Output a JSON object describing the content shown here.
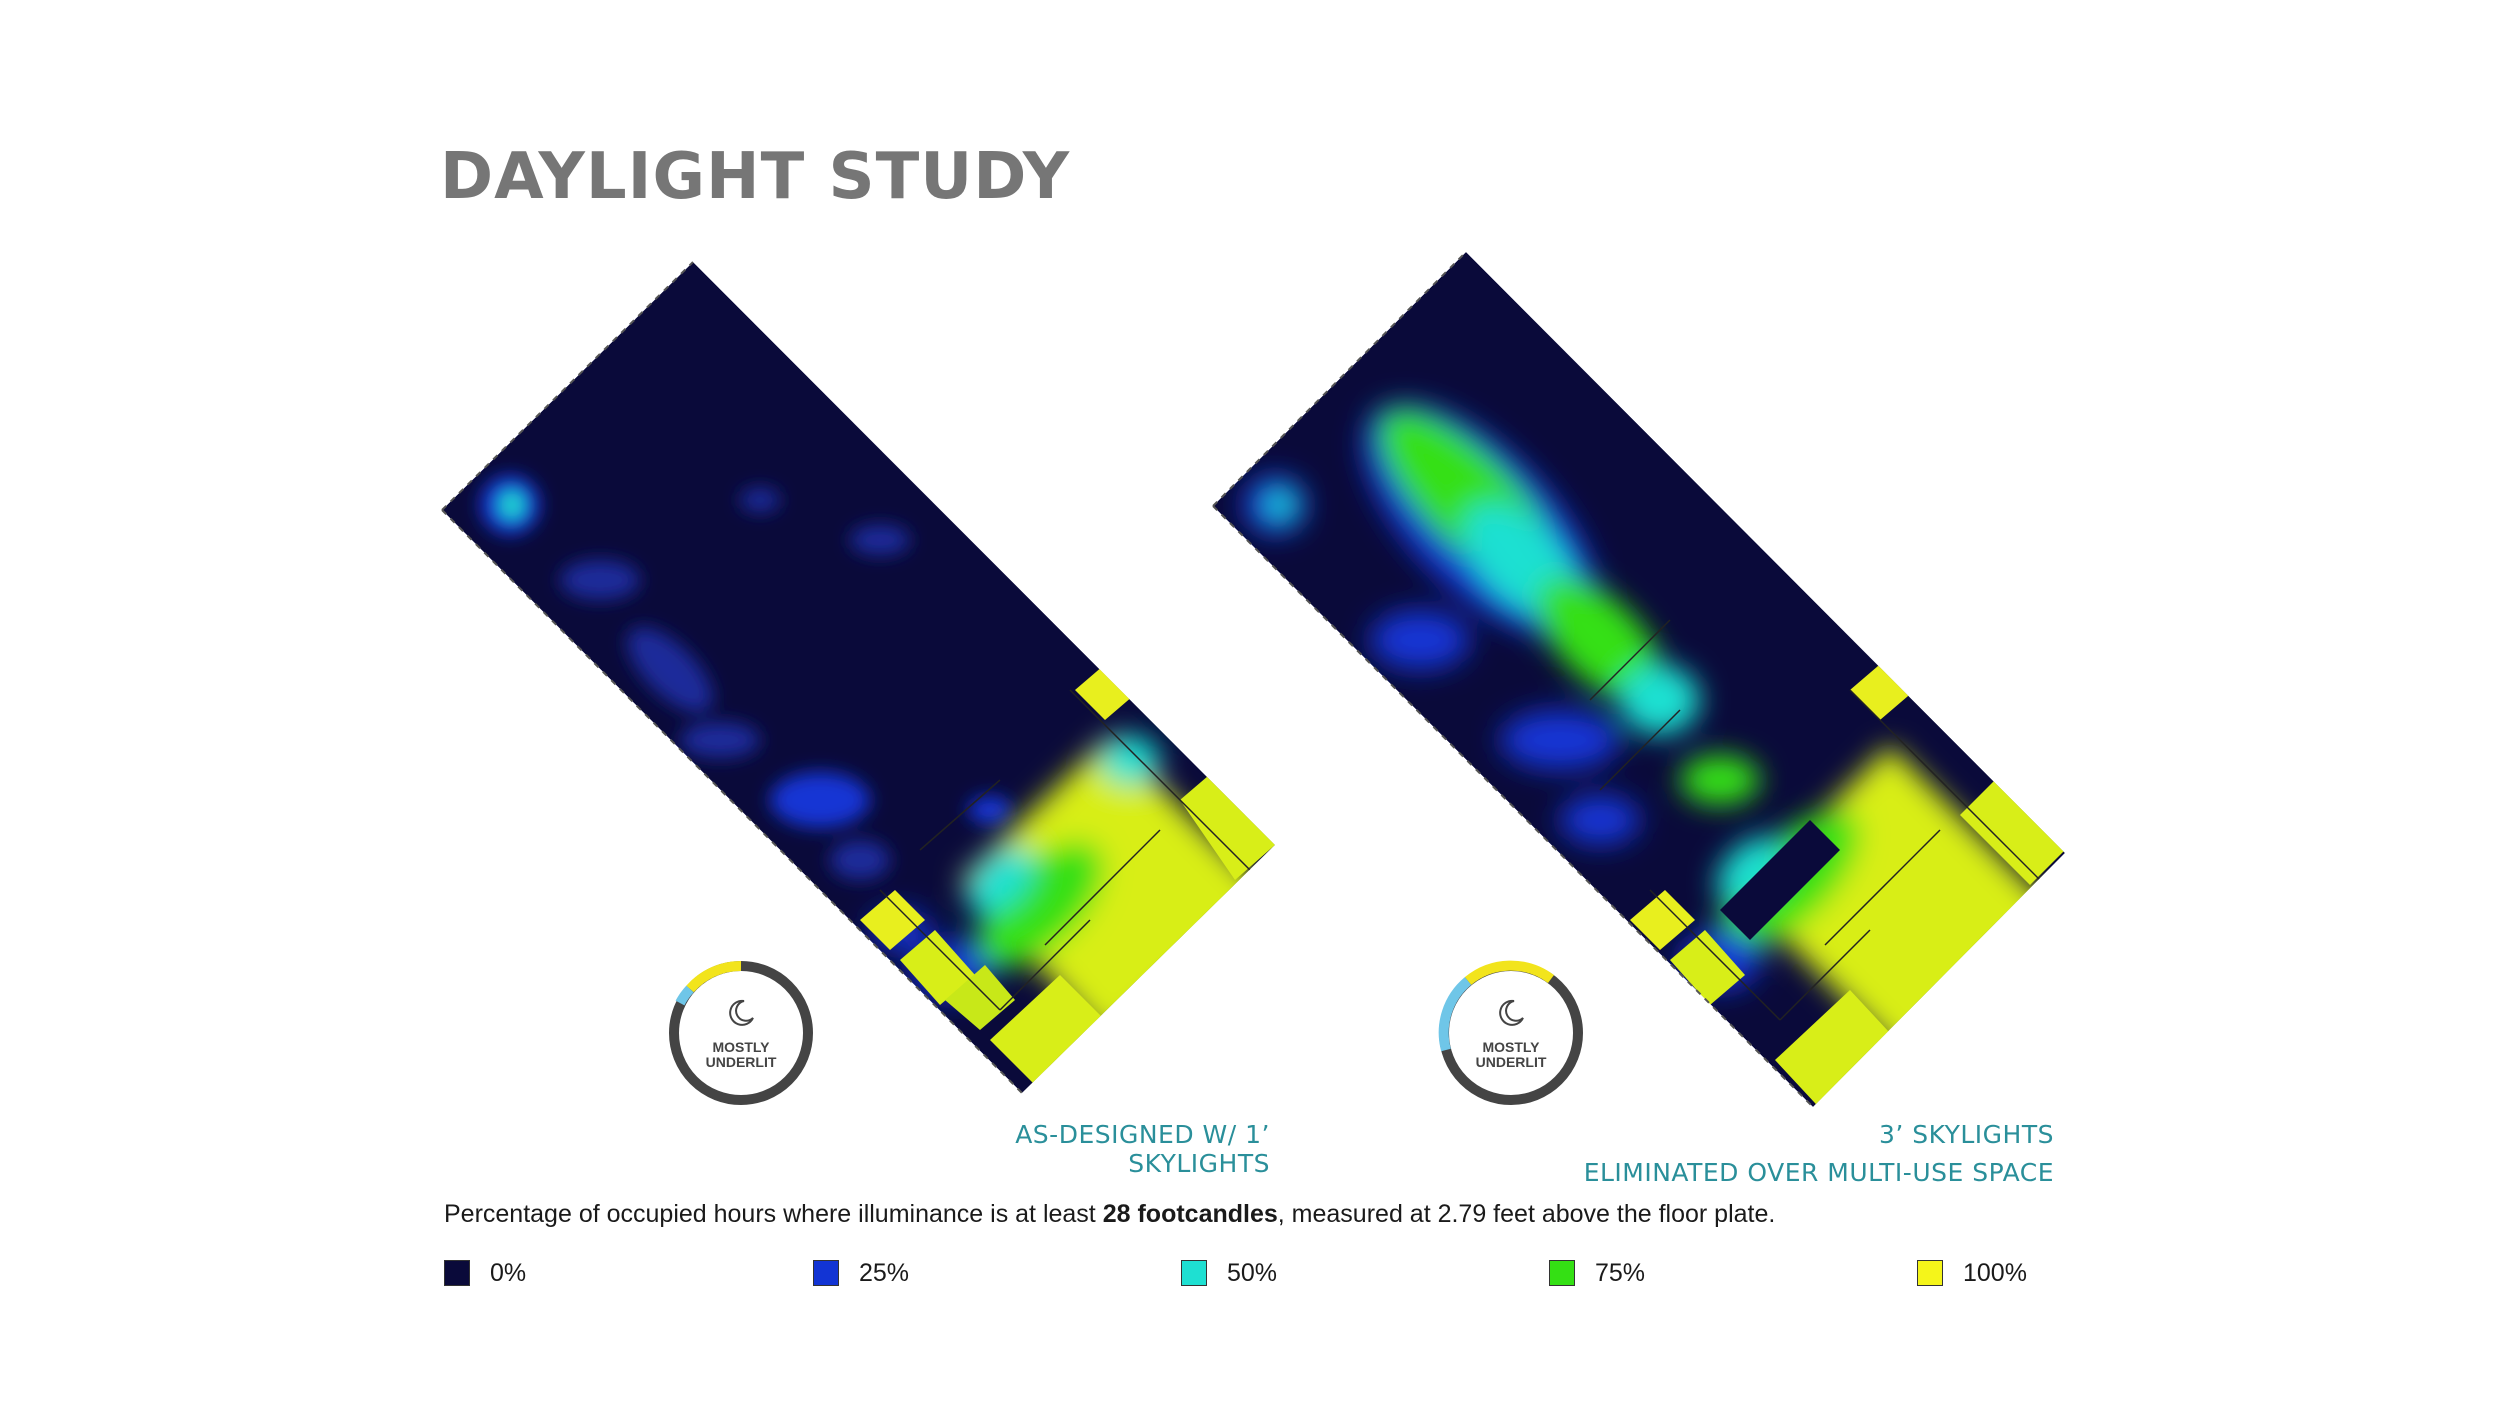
{
  "title": "DAYLIGHT STUDY",
  "plans": [
    {
      "caption_lines": [
        "AS-DESIGNED W/ 1’ SKYLIGHTS"
      ],
      "badge": {
        "text_lines": [
          "MOSTLY",
          "UNDERLIT"
        ],
        "icon": "moon-icon"
      }
    },
    {
      "caption_lines": [
        "3’ SKYLIGHTS",
        "ELIMINATED OVER MULTI-USE SPACE"
      ],
      "badge": {
        "text_lines": [
          "MOSTLY",
          "UNDERLIT"
        ],
        "icon": "moon-icon"
      }
    }
  ],
  "note": {
    "prefix": "Percentage of occupied hours where illuminance is at least ",
    "bold": "28 footcandles",
    "suffix": ", measured at 2.79 feet above the floor plate."
  },
  "legend": [
    {
      "label": "0%",
      "color": "#0a0a3a"
    },
    {
      "label": "25%",
      "color": "#1234d4"
    },
    {
      "label": "50%",
      "color": "#1ee0d2"
    },
    {
      "label": "75%",
      "color": "#34e014"
    },
    {
      "label": "100%",
      "color": "#f5f51a"
    }
  ],
  "colors": {
    "caption": "#2a8f9a",
    "ring": "#444444",
    "ring_yellow": "#f2e41c",
    "ring_blue": "#6fc6e8"
  }
}
